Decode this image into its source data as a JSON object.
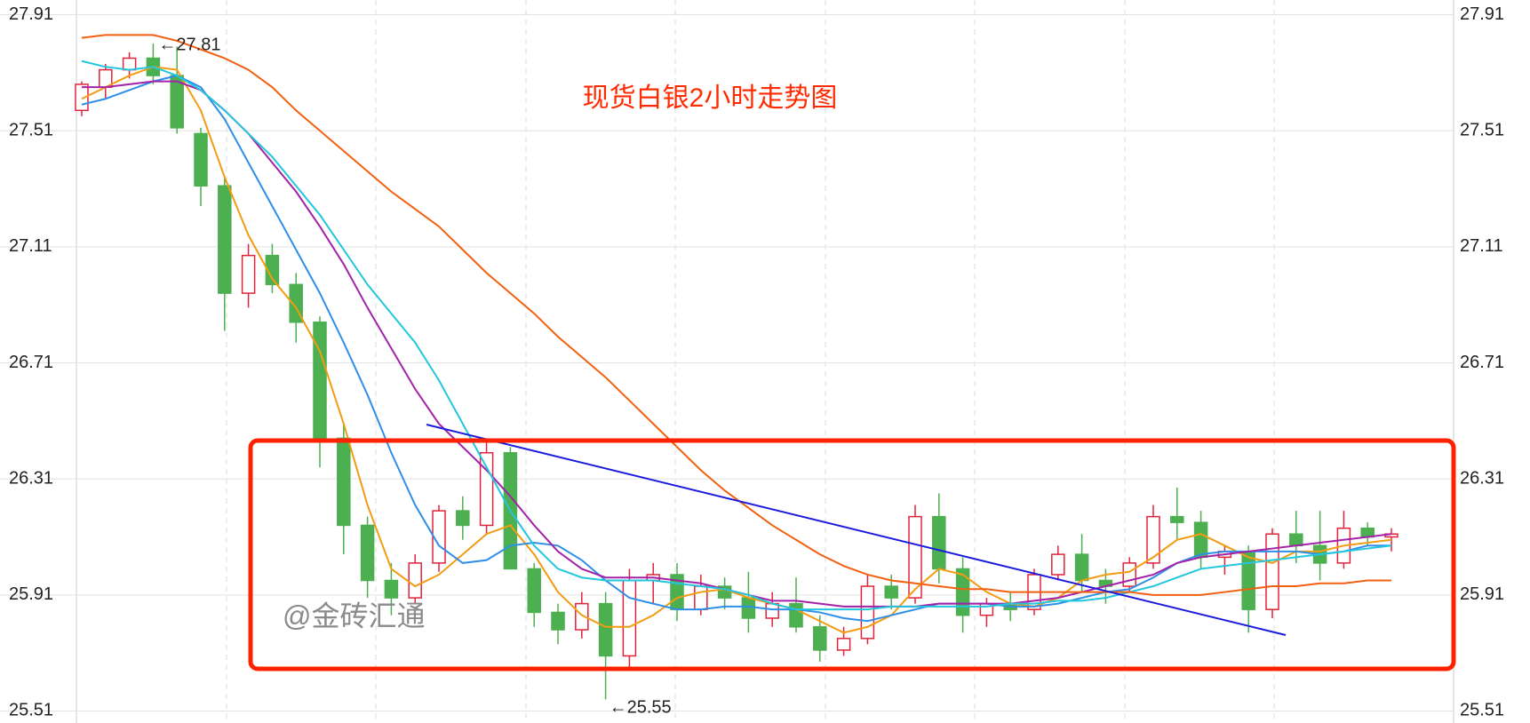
{
  "chart_data": {
    "type": "candlestick",
    "title": "现货白银2小时走势图",
    "watermark": "@金砖汇通",
    "high_annotation": "←27.81",
    "low_annotation": "←25.55",
    "ylim": [
      25.51,
      27.91
    ],
    "yticks": [
      25.51,
      25.91,
      26.31,
      26.71,
      27.11,
      27.51,
      27.91
    ],
    "grid": true,
    "up_color": "#e0233a",
    "down_color": "#4caf50",
    "open": [
      27.58,
      27.66,
      27.72,
      27.76,
      27.7,
      27.5,
      27.32,
      26.95,
      27.08,
      26.98,
      26.85,
      26.45,
      26.15,
      25.96,
      25.9,
      26.02,
      26.2,
      26.15,
      26.4,
      26.0,
      25.85,
      25.79,
      25.88,
      25.7,
      25.96,
      25.98,
      25.86,
      25.94,
      25.9,
      25.83,
      25.88,
      25.8,
      25.72,
      25.76,
      25.94,
      25.9,
      26.18,
      26.0,
      25.84,
      25.88,
      25.86,
      25.98,
      26.05,
      25.96,
      25.94,
      26.02,
      26.18,
      26.16,
      26.04,
      26.06,
      25.86,
      26.12,
      26.08,
      26.02,
      26.14,
      26.11
    ],
    "high": [
      27.68,
      27.74,
      27.78,
      27.81,
      27.8,
      27.52,
      27.35,
      27.12,
      27.12,
      27.02,
      26.87,
      26.5,
      26.18,
      26.02,
      26.05,
      26.22,
      26.25,
      26.45,
      26.42,
      26.02,
      25.88,
      25.92,
      25.92,
      26.0,
      26.02,
      26.02,
      25.98,
      25.97,
      25.99,
      25.92,
      25.97,
      25.84,
      25.8,
      25.98,
      25.98,
      26.22,
      26.26,
      26.04,
      25.9,
      25.92,
      26.0,
      26.08,
      26.12,
      26.0,
      26.04,
      26.22,
      26.28,
      26.2,
      26.08,
      26.08,
      26.14,
      26.2,
      26.2,
      26.2,
      26.16,
      26.14
    ],
    "low": [
      27.56,
      27.62,
      27.69,
      27.67,
      27.5,
      27.25,
      26.82,
      26.9,
      26.95,
      26.78,
      26.35,
      26.05,
      25.9,
      25.84,
      25.88,
      25.99,
      26.1,
      26.12,
      26.0,
      25.8,
      25.74,
      25.76,
      25.55,
      25.66,
      25.88,
      25.82,
      25.84,
      25.86,
      25.78,
      25.8,
      25.78,
      25.68,
      25.7,
      25.74,
      25.86,
      25.88,
      25.95,
      25.78,
      25.8,
      25.82,
      25.84,
      25.96,
      25.92,
      25.88,
      25.92,
      26.0,
      26.1,
      26.0,
      25.98,
      25.78,
      25.83,
      26.02,
      25.96,
      26.0,
      26.08,
      26.06
    ],
    "close": [
      27.67,
      27.72,
      27.76,
      27.7,
      27.52,
      27.32,
      26.95,
      27.08,
      26.98,
      26.85,
      26.45,
      26.15,
      25.96,
      25.9,
      26.02,
      26.2,
      26.15,
      26.4,
      26.0,
      25.85,
      25.79,
      25.88,
      25.7,
      25.96,
      25.98,
      25.86,
      25.94,
      25.9,
      25.83,
      25.88,
      25.8,
      25.72,
      25.76,
      25.94,
      25.9,
      26.18,
      26.0,
      25.84,
      25.88,
      25.86,
      25.98,
      26.05,
      25.96,
      25.94,
      26.02,
      26.18,
      26.16,
      26.04,
      26.06,
      25.86,
      26.12,
      26.08,
      26.02,
      26.14,
      26.11,
      26.12
    ],
    "lines": [
      {
        "color": "#f39c12",
        "values": [
          27.62,
          27.66,
          27.7,
          27.73,
          27.72,
          27.58,
          27.35,
          27.15,
          27.0,
          26.9,
          26.75,
          26.5,
          26.22,
          26.0,
          25.94,
          25.98,
          26.05,
          26.12,
          26.15,
          26.05,
          25.92,
          25.84,
          25.8,
          25.8,
          25.84,
          25.9,
          25.92,
          25.93,
          25.9,
          25.88,
          25.86,
          25.82,
          25.78,
          25.8,
          25.84,
          25.93,
          26.0,
          25.98,
          25.92,
          25.88,
          25.87,
          25.9,
          25.96,
          25.98,
          25.99,
          26.04,
          26.1,
          26.12,
          26.08,
          26.04,
          26.02,
          26.06,
          26.06,
          26.08,
          26.09,
          26.1
        ]
      },
      {
        "color": "#2f8fe8",
        "values": [
          27.6,
          27.62,
          27.65,
          27.68,
          27.7,
          27.66,
          27.55,
          27.4,
          27.25,
          27.1,
          26.95,
          26.78,
          26.6,
          26.4,
          26.22,
          26.08,
          26.02,
          26.03,
          26.08,
          26.09,
          26.08,
          26.03,
          25.96,
          25.9,
          25.88,
          25.86,
          25.86,
          25.87,
          25.87,
          25.86,
          25.86,
          25.85,
          25.83,
          25.82,
          25.84,
          25.86,
          25.88,
          25.88,
          25.88,
          25.87,
          25.87,
          25.88,
          25.9,
          25.92,
          25.93,
          25.97,
          26.02,
          26.05,
          26.06,
          26.06,
          26.06,
          26.06,
          26.05,
          26.06,
          26.08,
          26.08
        ]
      },
      {
        "color": "#a322a8",
        "values": [
          27.66,
          27.66,
          27.67,
          27.68,
          27.68,
          27.65,
          27.58,
          27.5,
          27.4,
          27.3,
          27.18,
          27.05,
          26.9,
          26.76,
          26.62,
          26.5,
          26.42,
          26.34,
          26.25,
          26.15,
          26.06,
          26.0,
          25.97,
          25.97,
          25.97,
          25.96,
          25.95,
          25.93,
          25.91,
          25.89,
          25.89,
          25.88,
          25.87,
          25.87,
          25.87,
          25.87,
          25.88,
          25.88,
          25.88,
          25.88,
          25.89,
          25.9,
          25.92,
          25.94,
          25.96,
          25.98,
          26.02,
          26.04,
          26.05,
          26.06,
          26.07,
          26.08,
          26.09,
          26.1,
          26.11,
          26.12
        ]
      },
      {
        "color": "#22c6dd",
        "values": [
          27.75,
          27.73,
          27.72,
          27.73,
          27.7,
          27.65,
          27.58,
          27.5,
          27.42,
          27.32,
          27.22,
          27.1,
          26.98,
          26.88,
          26.78,
          26.65,
          26.5,
          26.35,
          26.2,
          26.08,
          26.0,
          25.97,
          25.96,
          25.96,
          25.96,
          25.95,
          25.94,
          25.93,
          25.91,
          25.88,
          25.86,
          25.86,
          25.86,
          25.86,
          25.87,
          25.87,
          25.87,
          25.87,
          25.87,
          25.88,
          25.88,
          25.89,
          25.89,
          25.9,
          25.92,
          25.94,
          25.97,
          26.0,
          26.01,
          26.02,
          26.03,
          26.04,
          26.05,
          26.06,
          26.07,
          26.08
        ]
      },
      {
        "color": "#f2600f",
        "values": [
          27.83,
          27.84,
          27.84,
          27.84,
          27.82,
          27.79,
          27.76,
          27.72,
          27.66,
          27.58,
          27.51,
          27.44,
          27.37,
          27.3,
          27.24,
          27.18,
          27.1,
          27.02,
          26.95,
          26.88,
          26.8,
          26.73,
          26.66,
          26.58,
          26.5,
          26.42,
          26.34,
          26.27,
          26.21,
          26.15,
          26.1,
          26.05,
          26.01,
          25.98,
          25.96,
          25.95,
          25.94,
          25.93,
          25.93,
          25.92,
          25.92,
          25.92,
          25.92,
          25.92,
          25.92,
          25.91,
          25.91,
          25.91,
          25.92,
          25.93,
          25.94,
          25.94,
          25.95,
          25.95,
          25.96,
          25.96
        ]
      }
    ]
  }
}
